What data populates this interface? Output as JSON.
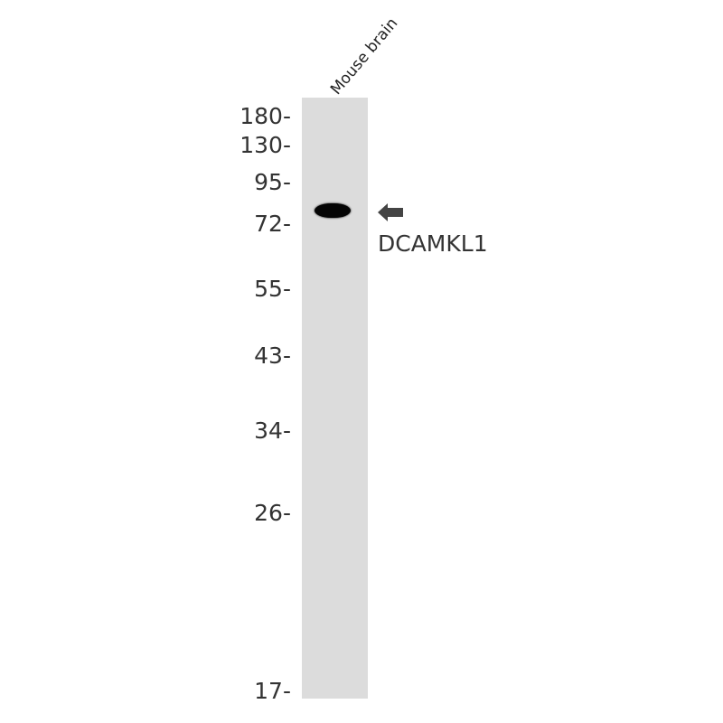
{
  "lane_labels": [
    "Mouse brain"
  ],
  "markers": [
    "180-",
    "130-",
    "95-",
    "72-",
    "55-",
    "43-",
    "34-",
    "26-",
    "17-"
  ],
  "target_label": "DCAMKL1",
  "icons": {
    "arrow": "arrow-left-icon"
  },
  "colors": {
    "lane": "#dcdcdc",
    "band": "#050505",
    "text": "#333333"
  }
}
